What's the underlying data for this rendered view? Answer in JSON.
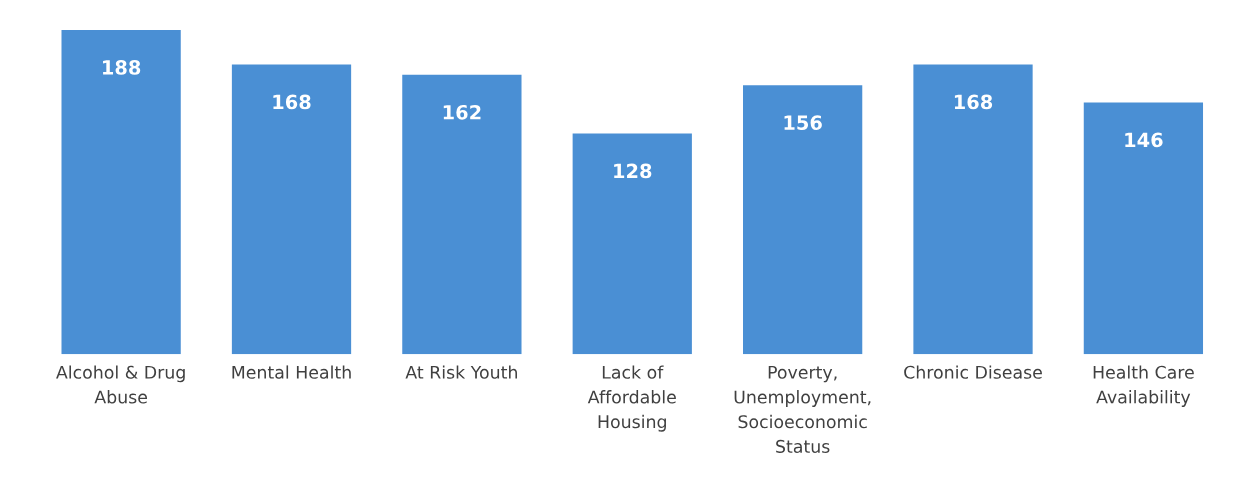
{
  "chart_data": {
    "type": "bar",
    "categories": [
      "Alcohol & Drug\nAbuse",
      "Mental Health",
      "At Risk Youth",
      "Lack of\nAffordable\nHousing",
      "Poverty,\nUnemployment,\nSocioeconomic\nStatus",
      "Chronic Disease",
      "Health Care\nAvailability"
    ],
    "values": [
      188,
      168,
      162,
      128,
      156,
      168,
      146
    ],
    "color": "#4a8fd4",
    "data_labels": true
  }
}
